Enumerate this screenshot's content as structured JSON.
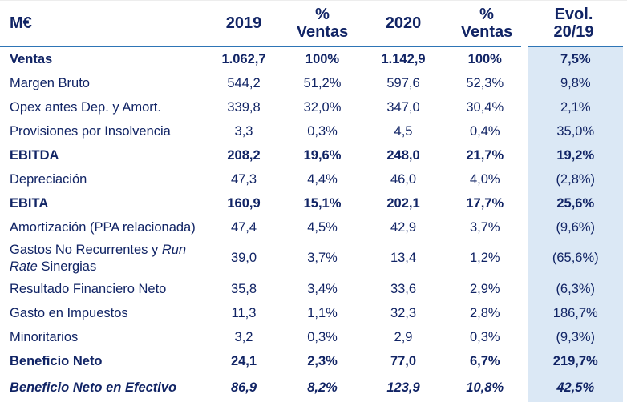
{
  "columns": {
    "label": "M€",
    "y2019": "2019",
    "pct1": {
      "line1": "%",
      "line2": "Ventas"
    },
    "y2020": "2020",
    "pct2": {
      "line1": "%",
      "line2": "Ventas"
    },
    "evol": {
      "line1": "Evol.",
      "line2": "20/19"
    }
  },
  "rows": [
    {
      "label": "Ventas",
      "v19": "1.062,7",
      "p19": "100%",
      "v20": "1.142,9",
      "p20": "100%",
      "evol": "7,5%"
    },
    {
      "label": "Margen Bruto",
      "v19": "544,2",
      "p19": "51,2%",
      "v20": "597,6",
      "p20": "52,3%",
      "evol": "9,8%"
    },
    {
      "label": "Opex antes Dep. y Amort.",
      "v19": "339,8",
      "p19": "32,0%",
      "v20": "347,0",
      "p20": "30,4%",
      "evol": "2,1%"
    },
    {
      "label": "Provisiones por Insolvencia",
      "v19": "3,3",
      "p19": "0,3%",
      "v20": "4,5",
      "p20": "0,4%",
      "evol": "35,0%"
    },
    {
      "label": "EBITDA",
      "v19": "208,2",
      "p19": "19,6%",
      "v20": "248,0",
      "p20": "21,7%",
      "evol": "19,2%"
    },
    {
      "label": "Depreciación",
      "v19": "47,3",
      "p19": "4,4%",
      "v20": "46,0",
      "p20": "4,0%",
      "evol": "(2,8%)"
    },
    {
      "label": "EBITA",
      "v19": "160,9",
      "p19": "15,1%",
      "v20": "202,1",
      "p20": "17,7%",
      "evol": "25,6%"
    },
    {
      "label": "Amortización (PPA relacionada)",
      "v19": "47,4",
      "p19": "4,5%",
      "v20": "42,9",
      "p20": "3,7%",
      "evol": "(9,6%)"
    },
    {
      "label_pre": "Gastos No Recurrentes y ",
      "label_italic": "Run Rate",
      "label_post": " Sinergias",
      "v19": "39,0",
      "p19": "3,7%",
      "v20": "13,4",
      "p20": "1,2%",
      "evol": "(65,6%)"
    },
    {
      "label": "Resultado Financiero Neto",
      "v19": "35,8",
      "p19": "3,4%",
      "v20": "33,6",
      "p20": "2,9%",
      "evol": "(6,3%)"
    },
    {
      "label": "Gasto en Impuestos",
      "v19": "11,3",
      "p19": "1,1%",
      "v20": "32,3",
      "p20": "2,8%",
      "evol": "186,7%"
    },
    {
      "label": "Minoritarios",
      "v19": "3,2",
      "p19": "0,3%",
      "v20": "2,9",
      "p20": "0,3%",
      "evol": "(9,3%)"
    },
    {
      "label": "Beneficio Neto",
      "v19": "24,1",
      "p19": "2,3%",
      "v20": "77,0",
      "p20": "6,7%",
      "evol": "219,7%"
    },
    {
      "label": "Beneficio Neto en Efectivo",
      "v19": "86,9",
      "p19": "8,2%",
      "v20": "123,9",
      "p20": "10,8%",
      "evol": "42,5%"
    }
  ],
  "colors": {
    "text_navy": "#112465",
    "highlight_column_bg": "#dbe8f5",
    "header_rule_blue": "#2e75b6"
  }
}
